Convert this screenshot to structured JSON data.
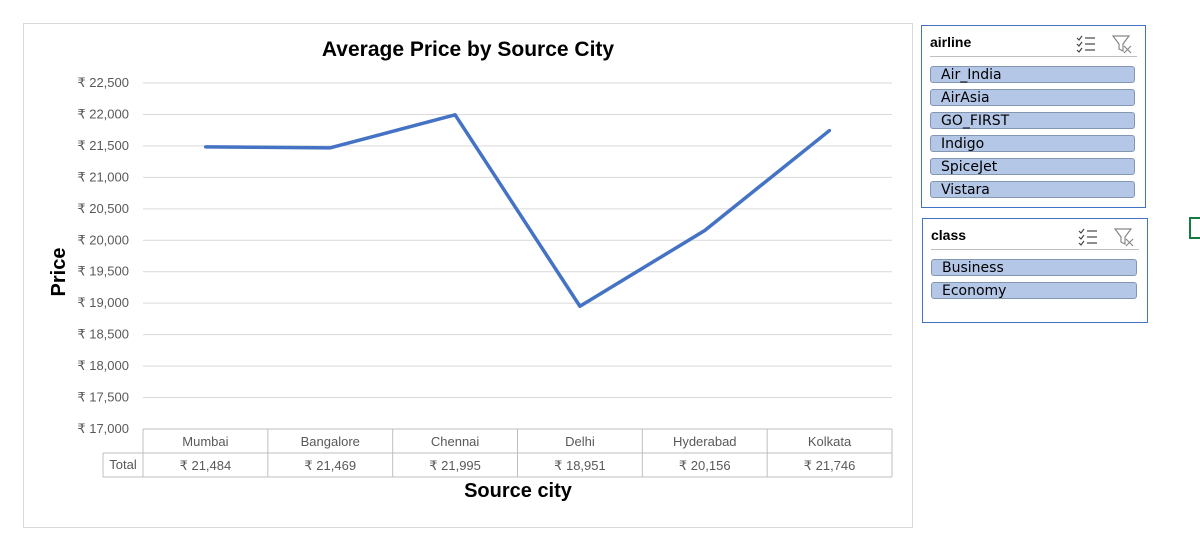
{
  "chart_data": {
    "type": "line",
    "title": "Average Price by Source City",
    "xlabel": "Source city",
    "ylabel": "Price",
    "categories": [
      "Mumbai",
      "Bangalore",
      "Chennai",
      "Delhi",
      "Hyderabad",
      "Kolkata"
    ],
    "series": [
      {
        "name": "Total",
        "values": [
          21484,
          21469,
          21995,
          18951,
          20156,
          21746
        ],
        "display": [
          "₹ 21,484",
          "₹ 21,469",
          "₹ 21,995",
          "₹ 18,951",
          "₹ 20,156",
          "₹ 21,746"
        ]
      }
    ],
    "ylim": [
      17000,
      22500
    ],
    "yticks": [
      22500,
      22000,
      21500,
      21000,
      20500,
      20000,
      19500,
      19000,
      18500,
      18000,
      17500,
      17000
    ],
    "ytick_labels": [
      "₹ 22,500",
      "₹ 22,000",
      "₹ 21,500",
      "₹ 21,000",
      "₹ 20,500",
      "₹ 20,000",
      "₹ 19,500",
      "₹ 19,000",
      "₹ 18,500",
      "₹ 18,000",
      "₹ 17,500",
      "₹ 17,000"
    ],
    "grid": true,
    "data_table": true,
    "line_color": "#4472c4"
  },
  "slicers": {
    "airline": {
      "title": "airline",
      "items": [
        "Air_India",
        "AirAsia",
        "GO_FIRST",
        "Indigo",
        "SpiceJet",
        "Vistara"
      ]
    },
    "class": {
      "title": "class",
      "items": [
        "Business",
        "Economy"
      ]
    }
  },
  "colors": {
    "accent": "#4472c4",
    "slicer_item": "#b4c7e7",
    "gridline": "#d9d9d9"
  }
}
